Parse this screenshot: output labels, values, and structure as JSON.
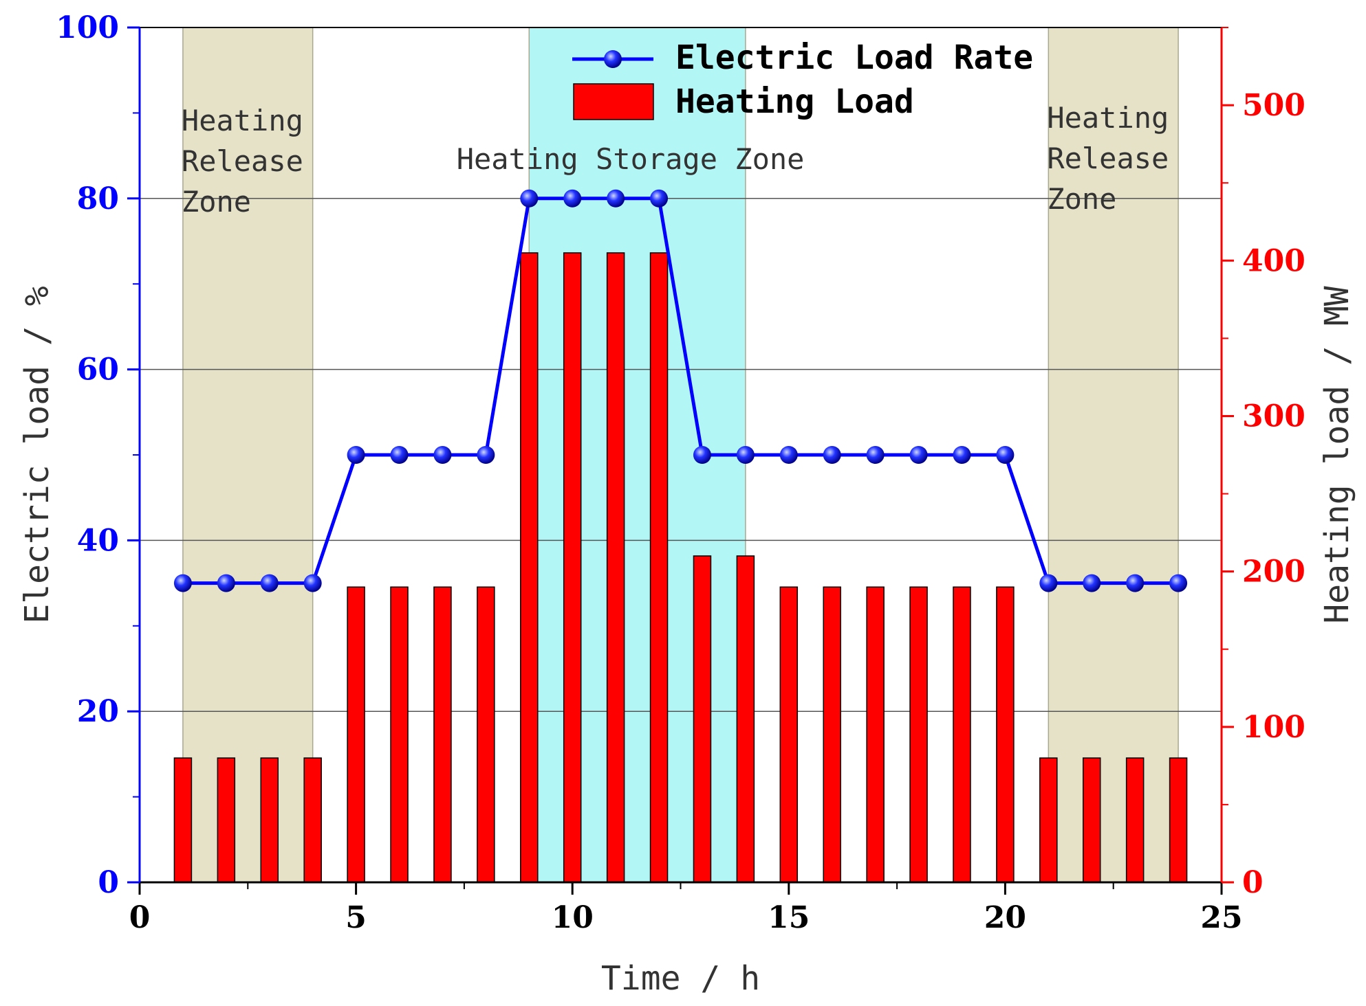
{
  "chart_data": {
    "type": "bar+line",
    "xlabel": "Time / h",
    "ylabel_left": "Electric load / %",
    "ylabel_right": "Heating load / MW",
    "xlim": [
      0,
      25
    ],
    "ylim_left": [
      0,
      100
    ],
    "ylim_right": [
      0,
      550
    ],
    "x_ticks": [
      "0",
      "5",
      "10",
      "15",
      "20",
      "25"
    ],
    "y_left_ticks": [
      "0",
      "20",
      "40",
      "60",
      "80",
      "100"
    ],
    "y_right_ticks": [
      "0",
      "100",
      "200",
      "300",
      "400",
      "500"
    ],
    "hours": [
      1,
      2,
      3,
      4,
      5,
      6,
      7,
      8,
      9,
      10,
      11,
      12,
      13,
      14,
      15,
      16,
      17,
      18,
      19,
      20,
      21,
      22,
      23,
      24
    ],
    "series": [
      {
        "name": "Electric Load Rate",
        "axis": "left",
        "kind": "line",
        "color": "#0000ff",
        "values": [
          35,
          35,
          35,
          35,
          50,
          50,
          50,
          50,
          80,
          80,
          80,
          80,
          50,
          50,
          50,
          50,
          50,
          50,
          50,
          50,
          35,
          35,
          35,
          35
        ]
      },
      {
        "name": "Heating Load",
        "axis": "right",
        "kind": "bar",
        "color": "#ff0000",
        "values": [
          80,
          80,
          80,
          80,
          190,
          190,
          190,
          190,
          405,
          405,
          405,
          405,
          210,
          210,
          190,
          190,
          190,
          190,
          190,
          190,
          80,
          80,
          80,
          80
        ]
      }
    ],
    "zones": [
      {
        "label_lines": [
          "Heating",
          "Release",
          "Zone"
        ],
        "x_range": [
          1,
          4
        ],
        "color": "#e5e2c8"
      },
      {
        "label_lines": [
          "Heating Storage Zone"
        ],
        "x_range": [
          9,
          14
        ],
        "color": "#b2f6f6"
      },
      {
        "label_lines": [
          "Heating",
          "Release",
          "Zone"
        ],
        "x_range": [
          21,
          24
        ],
        "color": "#e5e2c8"
      }
    ],
    "gridlines_left": [
      20,
      40,
      60,
      80
    ],
    "legend_position": "top-center",
    "colors": {
      "left_axis": "#0000ff",
      "right_axis": "#ff0000",
      "grid": "#555555"
    }
  }
}
